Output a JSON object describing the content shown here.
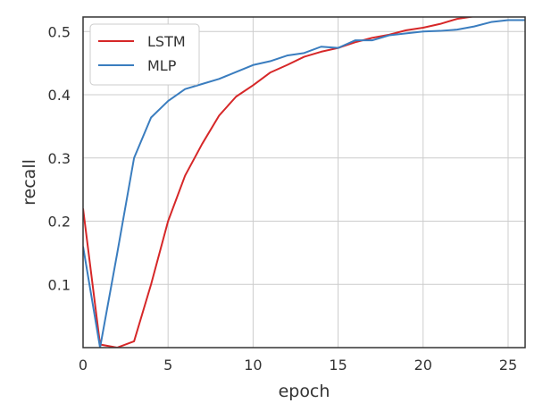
{
  "chart_data": {
    "type": "line",
    "title": "",
    "xlabel": "epoch",
    "ylabel": "recall",
    "xlim": [
      0,
      26
    ],
    "ylim": [
      0.0,
      0.523
    ],
    "x_ticks": [
      0,
      5,
      10,
      15,
      20,
      25
    ],
    "y_ticks": [
      0.1,
      0.2,
      0.3,
      0.4,
      0.5
    ],
    "x_tick_labels": [
      "0",
      "5",
      "10",
      "15",
      "20",
      "25"
    ],
    "y_tick_labels": [
      "0.1",
      "0.2",
      "0.3",
      "0.4",
      "0.5"
    ],
    "grid": true,
    "legend_position": "top-left",
    "x": [
      0,
      1,
      2,
      3,
      4,
      5,
      6,
      7,
      8,
      9,
      10,
      11,
      12,
      13,
      14,
      15,
      16,
      17,
      18,
      19,
      20,
      21,
      22,
      23,
      24,
      25,
      26
    ],
    "series": [
      {
        "name": "LSTM",
        "color": "#d62728",
        "values": [
          0.22,
          0.005,
          0.0,
          0.01,
          0.1,
          0.2,
          0.272,
          0.322,
          0.367,
          0.397,
          0.415,
          0.435,
          0.447,
          0.46,
          0.468,
          0.474,
          0.483,
          0.49,
          0.495,
          0.502,
          0.506,
          0.512,
          0.52,
          0.524,
          0.527,
          0.531,
          0.534
        ]
      },
      {
        "name": "MLP",
        "color": "#3a7dbf",
        "values": [
          0.16,
          0.0,
          0.148,
          0.3,
          0.364,
          0.39,
          0.409,
          0.417,
          0.425,
          0.436,
          0.447,
          0.453,
          0.462,
          0.466,
          0.476,
          0.474,
          0.486,
          0.486,
          0.494,
          0.497,
          0.5,
          0.501,
          0.503,
          0.508,
          0.515,
          0.518,
          0.518
        ]
      }
    ]
  }
}
